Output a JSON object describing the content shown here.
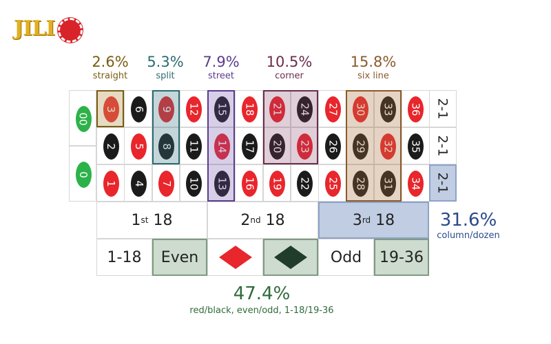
{
  "logo": {
    "text": "JILI",
    "sub": ""
  },
  "bet_labels": [
    {
      "pct": "2.6%",
      "name": "straight",
      "color": "#7a5c10"
    },
    {
      "pct": "5.3%",
      "name": "split",
      "color": "#2a6b72"
    },
    {
      "pct": "7.9%",
      "name": "street",
      "color": "#5b3a8e"
    },
    {
      "pct": "10.5%",
      "name": "corner",
      "color": "#6a2d4a"
    },
    {
      "pct": "15.8%",
      "name": "six line",
      "color": "#8a5a2a"
    }
  ],
  "zeros": [
    "00",
    "0"
  ],
  "rows": [
    [
      {
        "n": "3",
        "c": "red"
      },
      {
        "n": "6",
        "c": "black"
      },
      {
        "n": "9",
        "c": "red"
      },
      {
        "n": "12",
        "c": "red"
      },
      {
        "n": "15",
        "c": "black"
      },
      {
        "n": "18",
        "c": "red"
      },
      {
        "n": "21",
        "c": "red"
      },
      {
        "n": "24",
        "c": "black"
      },
      {
        "n": "27",
        "c": "red"
      },
      {
        "n": "30",
        "c": "red"
      },
      {
        "n": "33",
        "c": "black"
      },
      {
        "n": "36",
        "c": "red"
      }
    ],
    [
      {
        "n": "2",
        "c": "black"
      },
      {
        "n": "5",
        "c": "red"
      },
      {
        "n": "8",
        "c": "black"
      },
      {
        "n": "11",
        "c": "black"
      },
      {
        "n": "14",
        "c": "red"
      },
      {
        "n": "17",
        "c": "black"
      },
      {
        "n": "20",
        "c": "black"
      },
      {
        "n": "23",
        "c": "red"
      },
      {
        "n": "26",
        "c": "black"
      },
      {
        "n": "29",
        "c": "black"
      },
      {
        "n": "32",
        "c": "red"
      },
      {
        "n": "35",
        "c": "black"
      }
    ],
    [
      {
        "n": "1",
        "c": "red"
      },
      {
        "n": "4",
        "c": "black"
      },
      {
        "n": "7",
        "c": "red"
      },
      {
        "n": "10",
        "c": "black"
      },
      {
        "n": "13",
        "c": "black"
      },
      {
        "n": "16",
        "c": "red"
      },
      {
        "n": "19",
        "c": "red"
      },
      {
        "n": "22",
        "c": "black"
      },
      {
        "n": "25",
        "c": "red"
      },
      {
        "n": "28",
        "c": "black"
      },
      {
        "n": "31",
        "c": "black"
      },
      {
        "n": "34",
        "c": "red"
      }
    ]
  ],
  "column_labels": [
    "2-1",
    "2-1",
    "2-1"
  ],
  "dozens": [
    {
      "num": "1",
      "sup": "st",
      "suffix": "18"
    },
    {
      "num": "2",
      "sup": "nd",
      "suffix": "18"
    },
    {
      "num": "3",
      "sup": "rd",
      "suffix": "18"
    }
  ],
  "outside_bets": {
    "low": "1-18",
    "even": "Even",
    "odd": "Odd",
    "high": "19-36"
  },
  "column_dozen_label": {
    "pct": "31.6%",
    "name": "column/dozen"
  },
  "even_money_label": {
    "pct": "47.4%",
    "name": "red/black, even/odd, 1-18/19-36"
  },
  "colors": {
    "red": "#e8262c",
    "black": "#1b1b1b",
    "green": "#2db24a",
    "straight": "#7a5c10",
    "split": "#2a6b72",
    "street": "#5b3a8e",
    "corner": "#6a2d4a",
    "six_line": "#8a5a2a",
    "column_dozen": "#2a4a8a",
    "even_money": "#2f6b3a"
  }
}
